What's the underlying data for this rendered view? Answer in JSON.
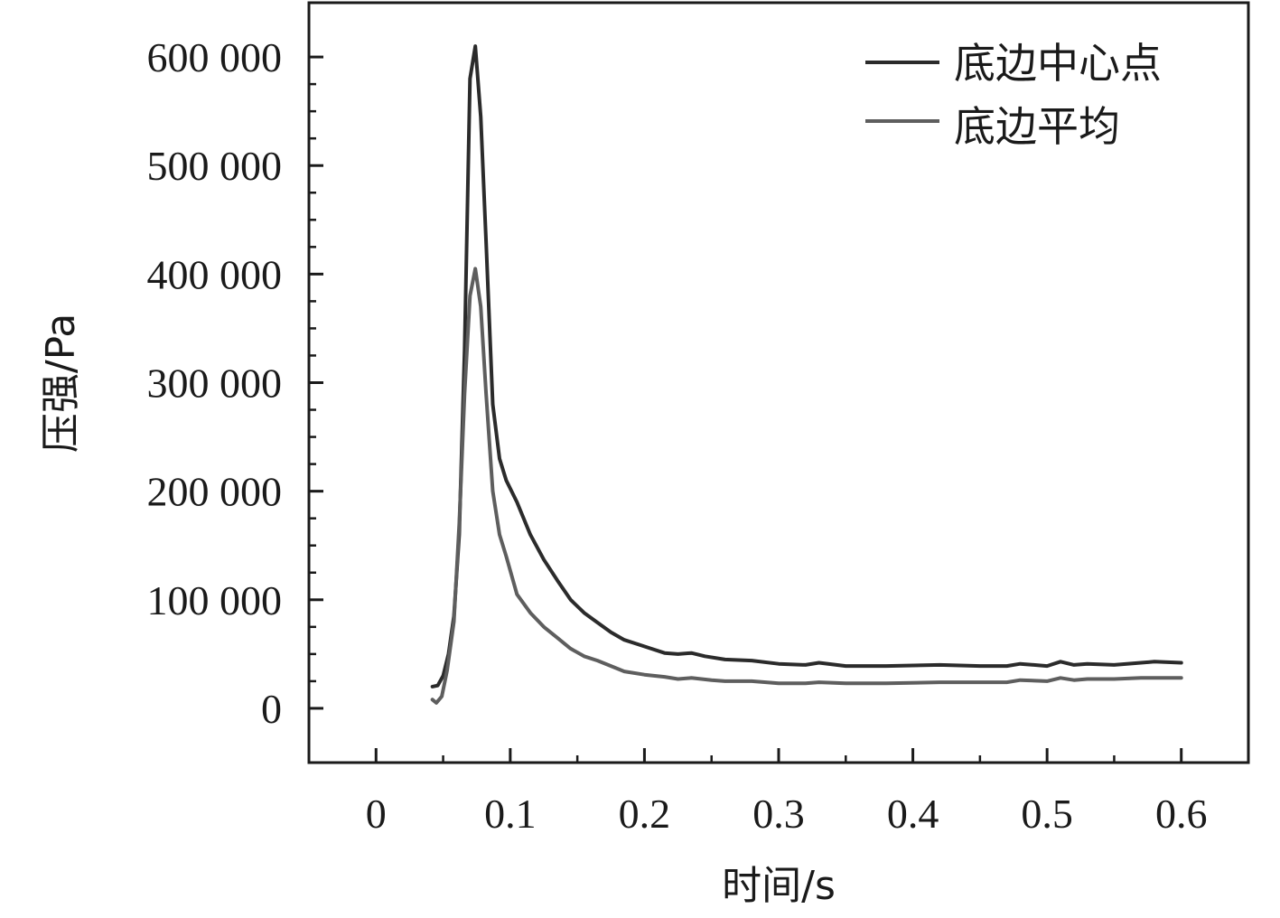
{
  "chart_data": {
    "type": "line",
    "xlabel": "时间/s",
    "ylabel": "压强/Pa",
    "xlim": [
      -0.05,
      0.65
    ],
    "ylim": [
      -50000,
      650000
    ],
    "xticks": [
      0,
      0.1,
      0.2,
      0.3,
      0.4,
      0.5,
      0.6
    ],
    "xtick_labels": [
      "0",
      "0.1",
      "0.2",
      "0.3",
      "0.4",
      "0.5",
      "0.6"
    ],
    "yticks": [
      0,
      100000,
      200000,
      300000,
      400000,
      500000,
      600000
    ],
    "ytick_labels": [
      "0",
      "100 000",
      "200 000",
      "300 000",
      "400 000",
      "500 000",
      "600 000"
    ],
    "grid": false,
    "legend": "top-right",
    "colors": {
      "series_0": "#2b2b2b",
      "series_1": "#5e5e5e"
    },
    "series": [
      {
        "name": "底边中心点",
        "points": [
          [
            0.042,
            20000
          ],
          [
            0.046,
            21000
          ],
          [
            0.05,
            30000
          ],
          [
            0.054,
            50000
          ],
          [
            0.058,
            85000
          ],
          [
            0.062,
            160000
          ],
          [
            0.066,
            330000
          ],
          [
            0.07,
            580000
          ],
          [
            0.074,
            610000
          ],
          [
            0.078,
            545000
          ],
          [
            0.082,
            430000
          ],
          [
            0.087,
            280000
          ],
          [
            0.092,
            230000
          ],
          [
            0.097,
            210000
          ],
          [
            0.105,
            190000
          ],
          [
            0.115,
            160000
          ],
          [
            0.125,
            137000
          ],
          [
            0.135,
            118000
          ],
          [
            0.145,
            100000
          ],
          [
            0.155,
            88000
          ],
          [
            0.165,
            79000
          ],
          [
            0.175,
            70000
          ],
          [
            0.185,
            63000
          ],
          [
            0.195,
            59000
          ],
          [
            0.205,
            55000
          ],
          [
            0.215,
            51000
          ],
          [
            0.225,
            50000
          ],
          [
            0.235,
            51000
          ],
          [
            0.245,
            48000
          ],
          [
            0.26,
            45000
          ],
          [
            0.28,
            44000
          ],
          [
            0.3,
            41000
          ],
          [
            0.32,
            40000
          ],
          [
            0.33,
            42000
          ],
          [
            0.35,
            39000
          ],
          [
            0.38,
            39000
          ],
          [
            0.42,
            40000
          ],
          [
            0.45,
            39000
          ],
          [
            0.47,
            39000
          ],
          [
            0.48,
            41000
          ],
          [
            0.5,
            39000
          ],
          [
            0.51,
            43000
          ],
          [
            0.52,
            40000
          ],
          [
            0.53,
            41000
          ],
          [
            0.55,
            40000
          ],
          [
            0.57,
            42000
          ],
          [
            0.58,
            43000
          ],
          [
            0.6,
            42000
          ]
        ]
      },
      {
        "name": "底边平均",
        "points": [
          [
            0.042,
            8000
          ],
          [
            0.045,
            5000
          ],
          [
            0.049,
            11000
          ],
          [
            0.053,
            35000
          ],
          [
            0.058,
            80000
          ],
          [
            0.062,
            170000
          ],
          [
            0.066,
            290000
          ],
          [
            0.07,
            380000
          ],
          [
            0.074,
            405000
          ],
          [
            0.078,
            370000
          ],
          [
            0.082,
            290000
          ],
          [
            0.087,
            200000
          ],
          [
            0.092,
            160000
          ],
          [
            0.097,
            140000
          ],
          [
            0.105,
            105000
          ],
          [
            0.115,
            88000
          ],
          [
            0.125,
            75000
          ],
          [
            0.135,
            65000
          ],
          [
            0.145,
            55000
          ],
          [
            0.155,
            48000
          ],
          [
            0.165,
            44000
          ],
          [
            0.175,
            39000
          ],
          [
            0.185,
            34000
          ],
          [
            0.2,
            31000
          ],
          [
            0.215,
            29000
          ],
          [
            0.225,
            27000
          ],
          [
            0.235,
            28000
          ],
          [
            0.25,
            26000
          ],
          [
            0.26,
            25000
          ],
          [
            0.28,
            25000
          ],
          [
            0.3,
            23000
          ],
          [
            0.32,
            23000
          ],
          [
            0.33,
            24000
          ],
          [
            0.35,
            23000
          ],
          [
            0.38,
            23000
          ],
          [
            0.42,
            24000
          ],
          [
            0.45,
            24000
          ],
          [
            0.47,
            24000
          ],
          [
            0.48,
            26000
          ],
          [
            0.5,
            25000
          ],
          [
            0.51,
            28000
          ],
          [
            0.52,
            26000
          ],
          [
            0.53,
            27000
          ],
          [
            0.55,
            27000
          ],
          [
            0.57,
            28000
          ],
          [
            0.6,
            28000
          ]
        ]
      }
    ]
  }
}
